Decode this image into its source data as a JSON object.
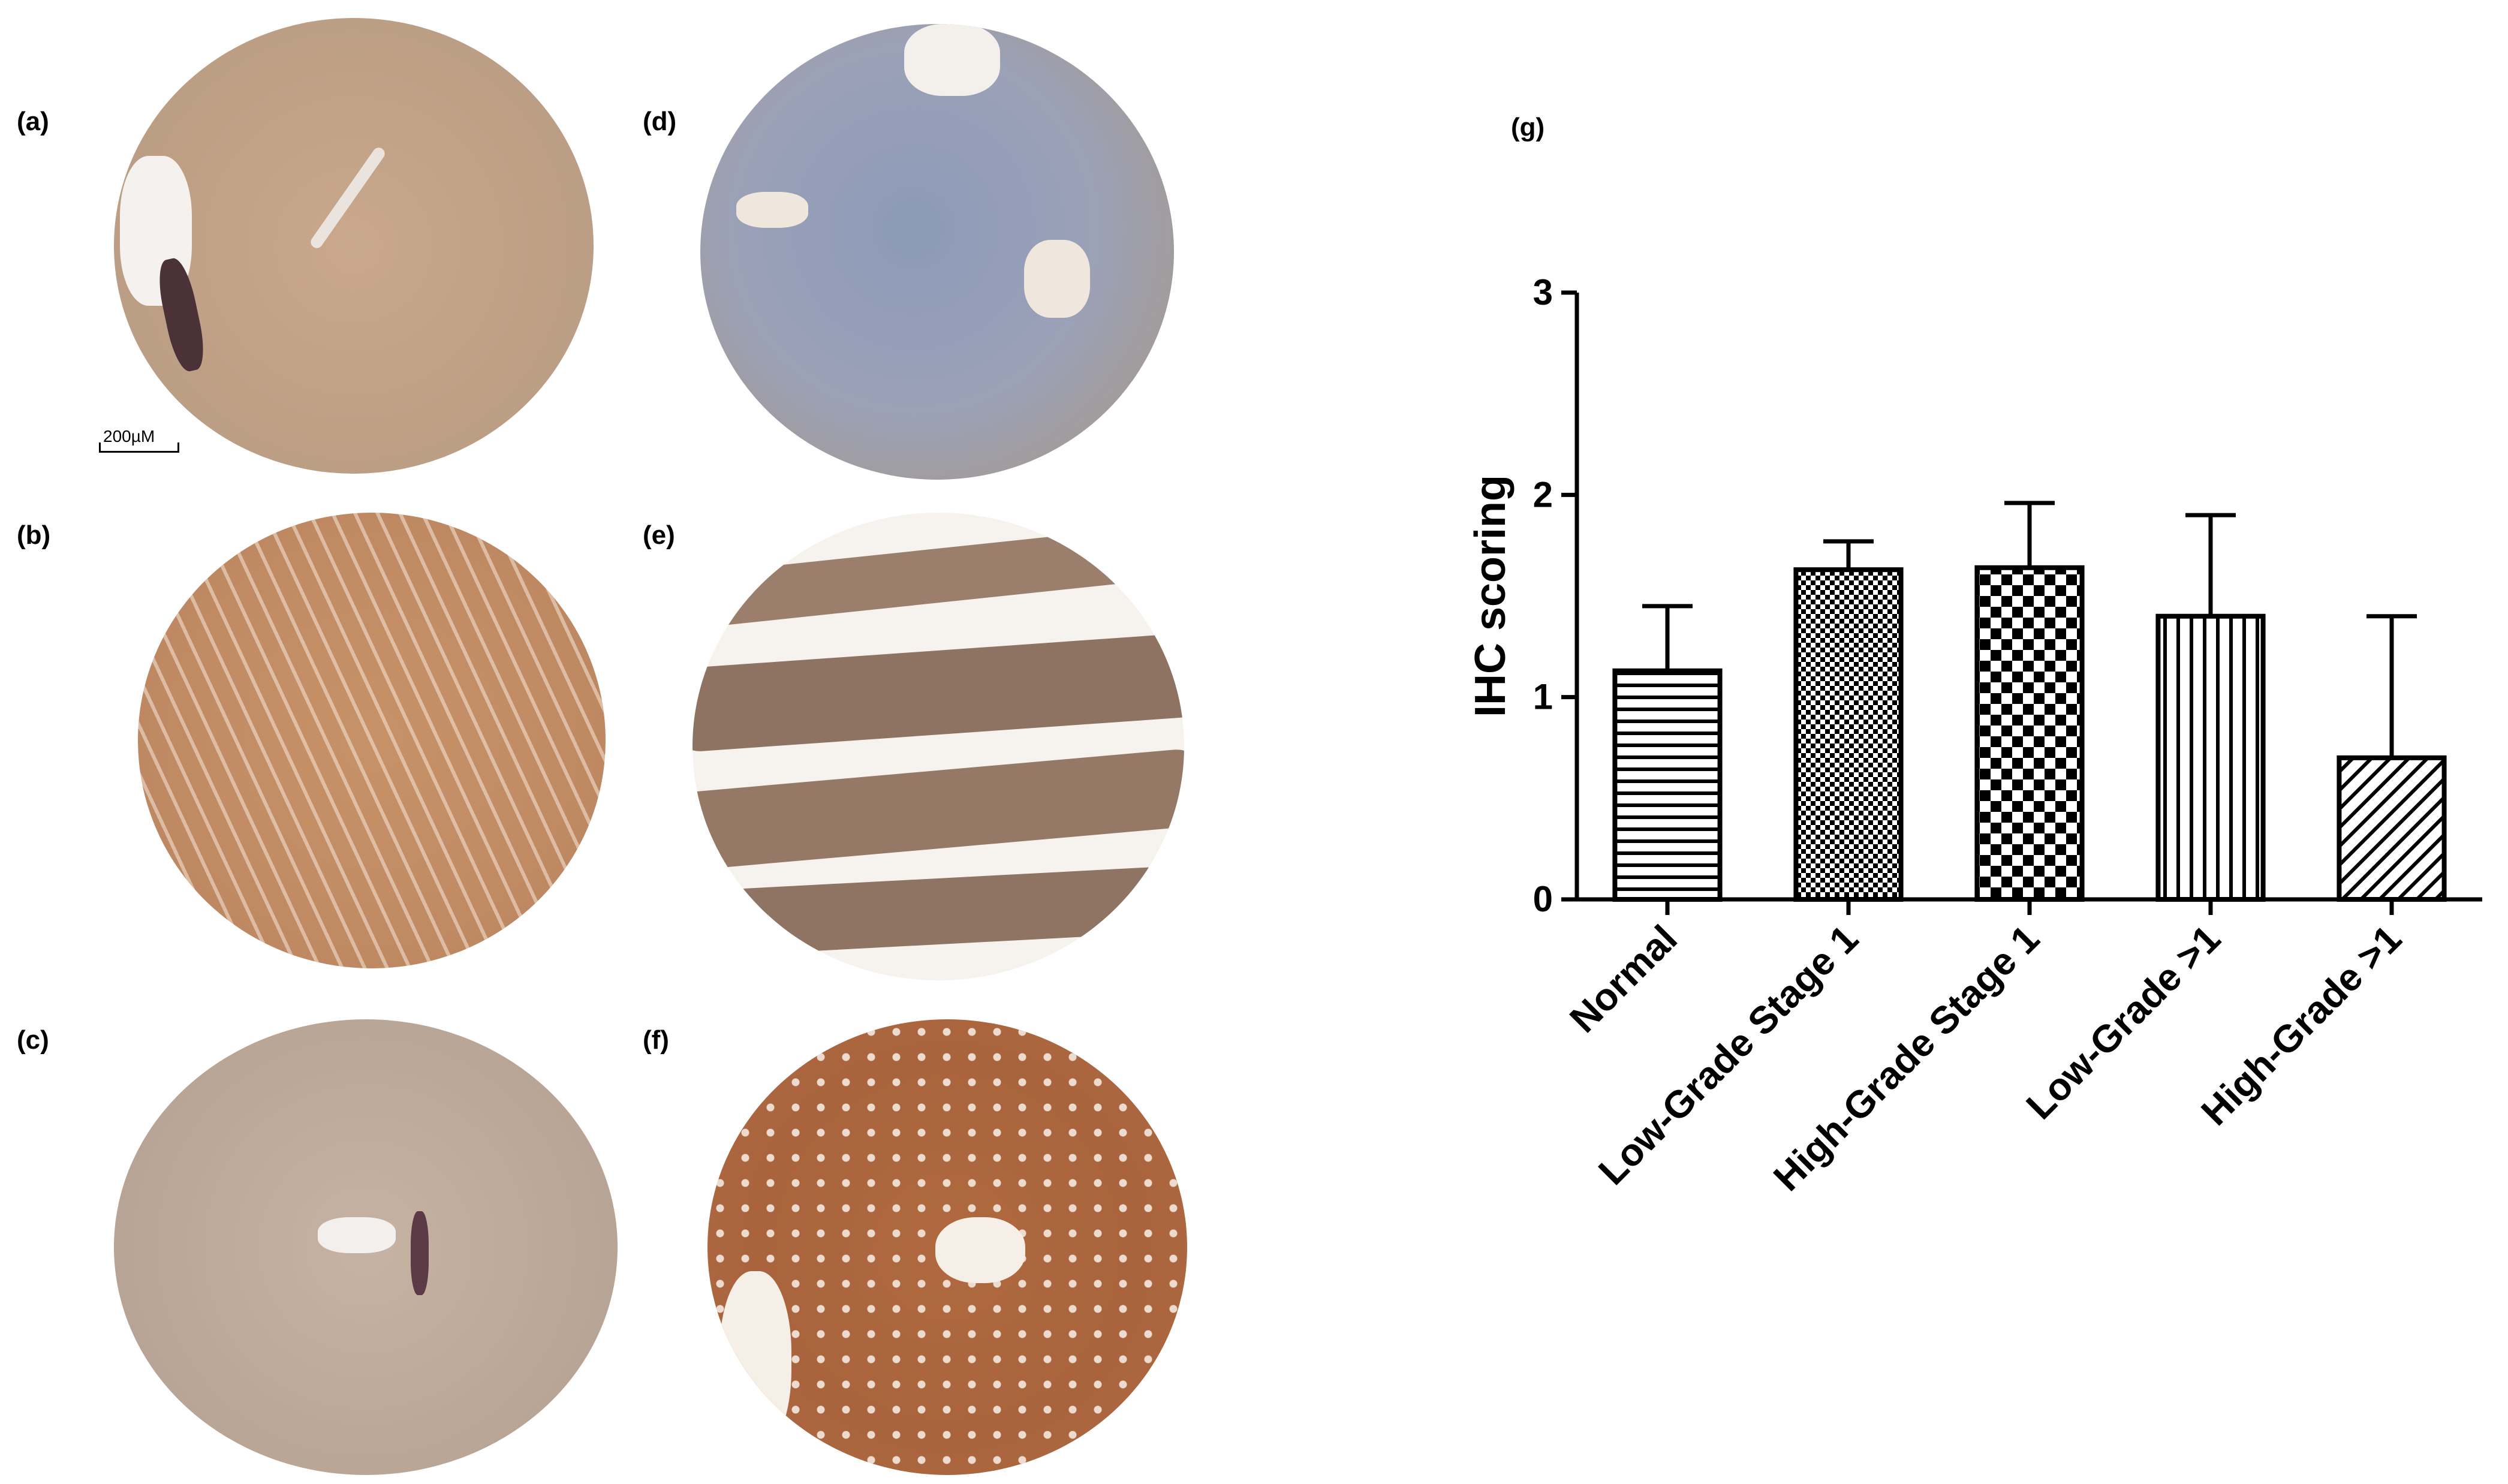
{
  "panels": {
    "a": "(a)",
    "b": "(b)",
    "c": "(c)",
    "d": "(d)",
    "e": "(e)",
    "f": "(f)",
    "g": "(g)"
  },
  "scale_bar": "200µM",
  "colors": {
    "bar_stroke": "#000000",
    "background": "#ffffff"
  },
  "chart_data": {
    "type": "bar",
    "categories": [
      "Normal",
      "Low-Grade Stage 1",
      "High-Grade Stage 1",
      "Low-Grade >1",
      "High-Grade >1"
    ],
    "values": [
      1.13,
      1.63,
      1.64,
      1.4,
      0.7
    ],
    "error_upper": [
      1.45,
      1.77,
      1.96,
      1.9,
      1.4
    ],
    "patterns": [
      "horizontal-lines",
      "fine-checker",
      "checkerboard",
      "vertical-lines",
      "diagonal-lines"
    ],
    "ylabel": "IHC scoring",
    "xlabel": "",
    "ylim": [
      0,
      3
    ],
    "yticks": [
      "0",
      "1",
      "2",
      "3"
    ],
    "grid": false
  }
}
